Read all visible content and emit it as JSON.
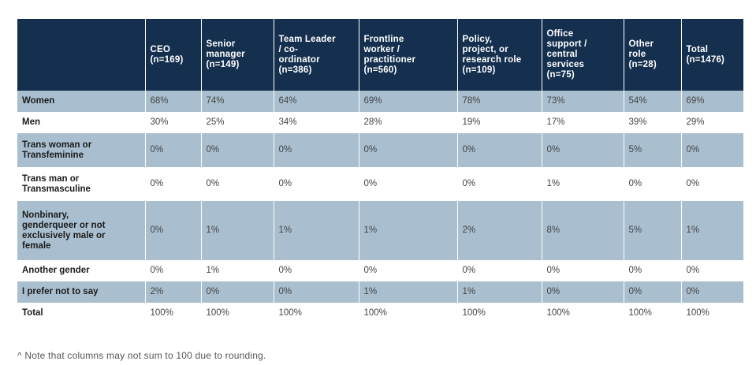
{
  "table": {
    "corner": "",
    "headers": [
      "CEO\n(n=169)",
      "Senior\nmanager\n(n=149)",
      "Team Leader\n/ co-\nordinator\n(n=386)",
      "Frontline\nworker /\npractitioner\n(n=560)",
      "Policy,\nproject, or\nresearch role\n(n=109)",
      "Office\nsupport /\ncentral\nservices\n(n=75)",
      "Other\nrole\n(n=28)",
      "Total\n(n=1476)"
    ],
    "rows": [
      {
        "label": "Women",
        "values": [
          "68%",
          "74%",
          "64%",
          "69%",
          "78%",
          "73%",
          "54%",
          "69%"
        ]
      },
      {
        "label": "Men",
        "values": [
          "30%",
          "25%",
          "34%",
          "28%",
          "19%",
          "17%",
          "39%",
          "29%"
        ]
      },
      {
        "label": "Trans woman or\nTransfeminine",
        "values": [
          "0%",
          "0%",
          "0%",
          "0%",
          "0%",
          "0%",
          "5%",
          "0%"
        ]
      },
      {
        "label": "Trans man or\nTransmasculine",
        "values": [
          "0%",
          "0%",
          "0%",
          "0%",
          "0%",
          "1%",
          "0%",
          "0%"
        ]
      },
      {
        "label": "Nonbinary,\ngenderqueer or not\nexclusively male or\nfemale",
        "values": [
          "0%",
          "1%",
          "1%",
          "1%",
          "2%",
          "8%",
          "5%",
          "1%"
        ]
      },
      {
        "label": "Another gender",
        "values": [
          "0%",
          "1%",
          "0%",
          "0%",
          "0%",
          "0%",
          "0%",
          "0%"
        ]
      },
      {
        "label": "I prefer not to say",
        "values": [
          "2%",
          "0%",
          "0%",
          "1%",
          "1%",
          "0%",
          "0%",
          "0%"
        ]
      },
      {
        "label": "Total",
        "values": [
          "100%",
          "100%",
          "100%",
          "100%",
          "100%",
          "100%",
          "100%",
          "100%"
        ]
      }
    ]
  },
  "footnote": "^ Note that columns may not sum to 100 due to rounding.",
  "colors": {
    "header_bg": "#15304f",
    "shaded_row": "#a9bfcf"
  }
}
